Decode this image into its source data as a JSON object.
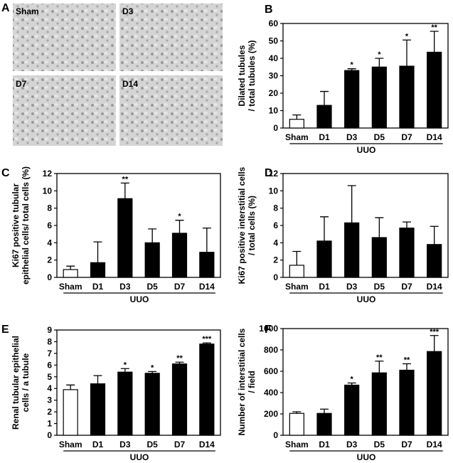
{
  "micrographs": {
    "panel": "A",
    "labels": [
      "Sham",
      "D3",
      "D7",
      "D14"
    ]
  },
  "chart_data": [
    {
      "type": "bar",
      "panel": "B",
      "ylabel": [
        "Dilated tubules",
        "/ total tubules (%)"
      ],
      "categories": [
        "Sham",
        "D1",
        "D3",
        "D5",
        "D7",
        "D14"
      ],
      "group_label": "UUO",
      "values": [
        5,
        13,
        33,
        35,
        35.5,
        43.5
      ],
      "errors": [
        2.5,
        8,
        1,
        5,
        15,
        12
      ],
      "annotations": [
        null,
        null,
        "*",
        "*",
        "*",
        "**"
      ],
      "colors": [
        "#ffffff",
        "#000000",
        "#000000",
        "#000000",
        "#000000",
        "#000000"
      ],
      "ylim": [
        0,
        60
      ],
      "yticks": [
        0,
        10,
        20,
        30,
        40,
        50,
        60
      ]
    },
    {
      "type": "bar",
      "panel": "C",
      "ylabel": [
        "Ki67 positive tubular",
        "epithelial cells/ total cells (%)"
      ],
      "categories": [
        "Sham",
        "D1",
        "D3",
        "D5",
        "D7",
        "D14"
      ],
      "group_label": "UUO",
      "values": [
        0.9,
        1.7,
        9.1,
        4.0,
        5.1,
        2.9
      ],
      "errors": [
        0.4,
        2.4,
        1.8,
        1.6,
        1.5,
        2.8
      ],
      "annotations": [
        null,
        null,
        "**",
        null,
        "*",
        null
      ],
      "colors": [
        "#ffffff",
        "#000000",
        "#000000",
        "#000000",
        "#000000",
        "#000000"
      ],
      "ylim": [
        0,
        12
      ],
      "yticks": [
        0,
        2,
        4,
        6,
        8,
        10,
        12
      ]
    },
    {
      "type": "bar",
      "panel": "D",
      "ylabel": [
        "Ki67 positive interstitial cells",
        "/ total cells (%)"
      ],
      "categories": [
        "Sham",
        "D1",
        "D3",
        "D5",
        "D7",
        "D14"
      ],
      "group_label": "UUO",
      "values": [
        1.4,
        4.2,
        6.3,
        4.6,
        5.7,
        3.8
      ],
      "errors": [
        1.6,
        2.8,
        4.3,
        2.3,
        0.7,
        2.1
      ],
      "colors": [
        "#ffffff",
        "#000000",
        "#000000",
        "#000000",
        "#000000",
        "#000000"
      ],
      "ylim": [
        0,
        12
      ],
      "yticks": [
        0,
        2,
        4,
        6,
        8,
        10,
        12
      ]
    },
    {
      "type": "bar",
      "panel": "E",
      "ylabel": [
        "Renal tubular epithelial",
        "cells / a tubule"
      ],
      "categories": [
        "Sham",
        "D1",
        "D3",
        "D5",
        "D7",
        "D14"
      ],
      "group_label": "UUO",
      "values": [
        3.9,
        4.4,
        5.4,
        5.3,
        6.1,
        7.8
      ],
      "errors": [
        0.4,
        0.7,
        0.3,
        0.15,
        0.15,
        0.1
      ],
      "annotations": [
        null,
        null,
        "*",
        "*",
        "**",
        "***"
      ],
      "colors": [
        "#ffffff",
        "#000000",
        "#000000",
        "#000000",
        "#000000",
        "#000000"
      ],
      "ylim": [
        0,
        9
      ],
      "yticks": [
        0,
        1,
        2,
        3,
        4,
        5,
        6,
        7,
        8,
        9
      ]
    },
    {
      "type": "bar",
      "panel": "F",
      "ylabel": [
        "Number of interstitial cells",
        "/ field"
      ],
      "categories": [
        "Sham",
        "D1",
        "D3",
        "D5",
        "D7",
        "D14"
      ],
      "group_label": "UUO",
      "values": [
        205,
        205,
        470,
        585,
        610,
        785
      ],
      "errors": [
        15,
        40,
        20,
        110,
        60,
        150
      ],
      "annotations": [
        null,
        null,
        "*",
        "**",
        "**",
        "***"
      ],
      "colors": [
        "#ffffff",
        "#000000",
        "#000000",
        "#000000",
        "#000000",
        "#000000"
      ],
      "ylim": [
        0,
        1000
      ],
      "yticks": [
        0,
        200,
        400,
        600,
        800,
        1000
      ]
    }
  ]
}
